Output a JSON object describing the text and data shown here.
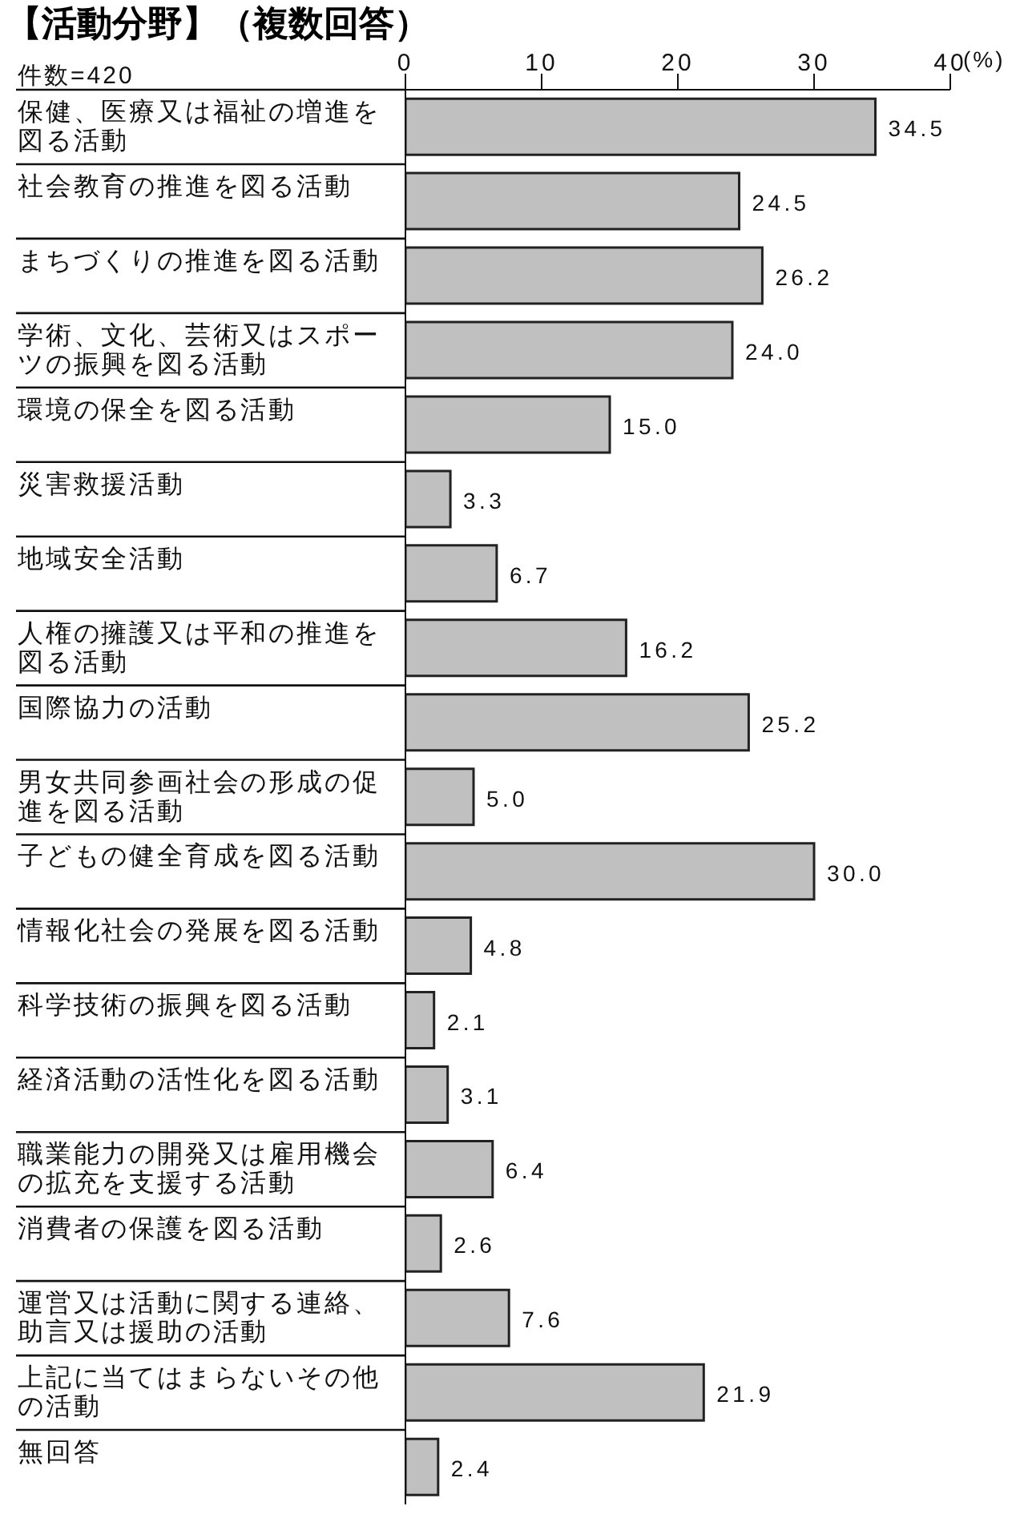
{
  "chart_data": {
    "type": "bar",
    "orientation": "horizontal",
    "title": "【活動分野】（複数回答）",
    "xlabel": "(%)",
    "annotations": [
      "件数=420"
    ],
    "categories": [
      "保健、医療又は福祉の増進を図る活動",
      "社会教育の推進を図る活動",
      "まちづくりの推進を図る活動",
      "学術、文化、芸術又はスポーツの振興を図る活動",
      "環境の保全を図る活動",
      "災害救援活動",
      "地域安全活動",
      "人権の擁護又は平和の推進を図る活動",
      "国際協力の活動",
      "男女共同参画社会の形成の促進を図る活動",
      "子どもの健全育成を図る活動",
      "情報化社会の発展を図る活動",
      "科学技術の振興を図る活動",
      "経済活動の活性化を図る活動",
      "職業能力の開発又は雇用機会の拡充を支援する活動",
      "消費者の保護を図る活動",
      "運営又は活動に関する連絡、助言又は援助の活動",
      "上記に当てはまらないその他の活動",
      "無回答"
    ],
    "values": [
      34.5,
      24.5,
      26.2,
      24.0,
      15.0,
      3.3,
      6.7,
      16.2,
      25.2,
      5.0,
      30.0,
      4.8,
      2.1,
      3.1,
      6.4,
      2.6,
      7.6,
      21.9,
      2.4
    ],
    "value_labels": [
      "34.5",
      "24.5",
      "26.2",
      "24.0",
      "15.0",
      "3.3",
      "6.7",
      "16.2",
      "25.2",
      "5.0",
      "30.0",
      "4.8",
      "2.1",
      "3.1",
      "6.4",
      "2.6",
      "7.6",
      "21.9",
      "2.4"
    ],
    "color": "#c0c0c0",
    "xlim": [
      0,
      40
    ],
    "xticks": [
      0,
      10,
      20,
      30,
      40
    ]
  }
}
